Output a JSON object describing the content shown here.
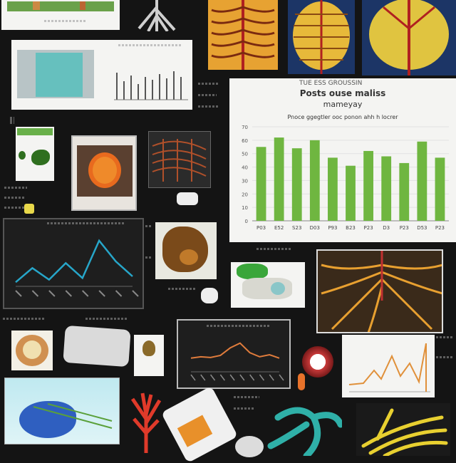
{
  "main_chart": {
    "title_line1": "Posts ouse maliss",
    "title_line2": "mameyay",
    "subtitle": "Pnoce ggegtler ooc ponon ahh h locrer",
    "header_caption": "TUE ESS GROUSSIN",
    "y_ticks": [
      "70",
      "60",
      "50",
      "40",
      "30",
      "20",
      "10",
      "0"
    ],
    "x_labels": [
      "P03",
      "E52",
      "S23",
      "D03",
      "P93",
      "B23",
      "P23",
      "D3",
      "P23",
      "D53",
      "P23"
    ]
  },
  "chart_data": [
    {
      "type": "bar",
      "categories": [
        "P03",
        "E52",
        "S23",
        "D03",
        "P93",
        "B23",
        "P23",
        "D3",
        "P23",
        "D53",
        "P23"
      ],
      "values": [
        55,
        62,
        54,
        60,
        47,
        41,
        52,
        48,
        43,
        59,
        47
      ],
      "title": "Posts ouse maliss mameyay",
      "xlabel": "",
      "ylabel": "",
      "ylim": [
        0,
        70
      ]
    },
    {
      "type": "line",
      "x": [
        1,
        2,
        3,
        4,
        5,
        6,
        7,
        8
      ],
      "values": [
        5,
        22,
        8,
        28,
        10,
        55,
        30,
        12
      ],
      "title": "",
      "ylim": [
        0,
        60
      ]
    },
    {
      "type": "line",
      "x": [
        1,
        2,
        3,
        4,
        5,
        6,
        7,
        8,
        9,
        10
      ],
      "values": [
        20,
        22,
        21,
        24,
        35,
        42,
        28,
        22,
        25,
        20
      ],
      "title": "",
      "ylim": [
        0,
        50
      ]
    }
  ],
  "colors": {
    "background": "#141414",
    "bar_green": "#6fb640",
    "line_blue": "#27a6c9",
    "line_orange": "#e07c3c"
  }
}
